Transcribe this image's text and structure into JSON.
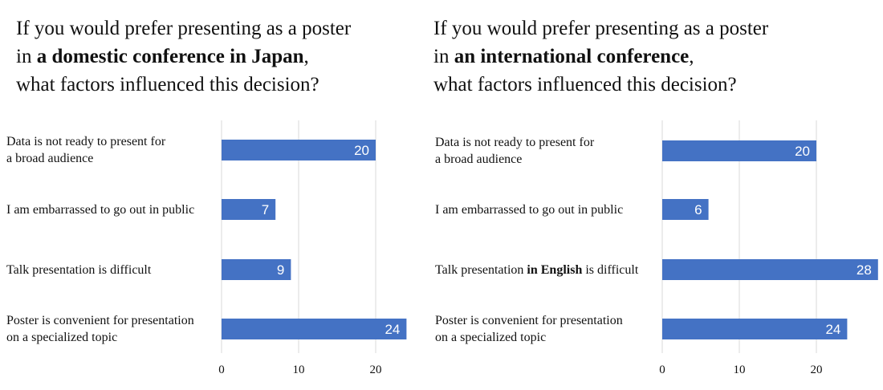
{
  "charts": [
    {
      "title": {
        "line1": "If you would prefer presenting as a poster",
        "line2_pre": "in ",
        "line2_bold": "a domestic conference in Japan",
        "line2_post": ",",
        "line3": "what factors influenced this decision?"
      }
    },
    {
      "title": {
        "line1": "If you would prefer presenting as a poster",
        "line2_pre": "in ",
        "line2_bold": "an international conference",
        "line2_post": ",",
        "line3": "what factors influenced this decision?"
      }
    }
  ],
  "chart_data": [
    {
      "type": "bar",
      "orientation": "horizontal",
      "categories": [
        [
          "Data is not ready to present for",
          "a broad audience"
        ],
        [
          "I am embarrassed to go out in public"
        ],
        [
          "Talk presentation is difficult"
        ],
        [
          "Poster is convenient for presentation",
          "on a specialized topic"
        ]
      ],
      "values": [
        20,
        7,
        9,
        24
      ],
      "xticks": [
        0,
        10,
        20
      ],
      "xlim": [
        0,
        24
      ],
      "grid": true,
      "bar_color": "#4472c4"
    },
    {
      "type": "bar",
      "orientation": "horizontal",
      "categories": [
        [
          "Data is not ready to present for",
          "a broad audience"
        ],
        [
          "I am embarrassed to go out in public"
        ],
        [
          "Talk presentation ",
          "in English",
          " is difficult"
        ],
        [
          "Poster is convenient for presentation",
          "on a specialized topic"
        ]
      ],
      "values": [
        20,
        6,
        28,
        24
      ],
      "xticks": [
        0,
        10,
        20
      ],
      "xlim": [
        0,
        28
      ],
      "grid": true,
      "bar_color": "#4472c4"
    }
  ]
}
